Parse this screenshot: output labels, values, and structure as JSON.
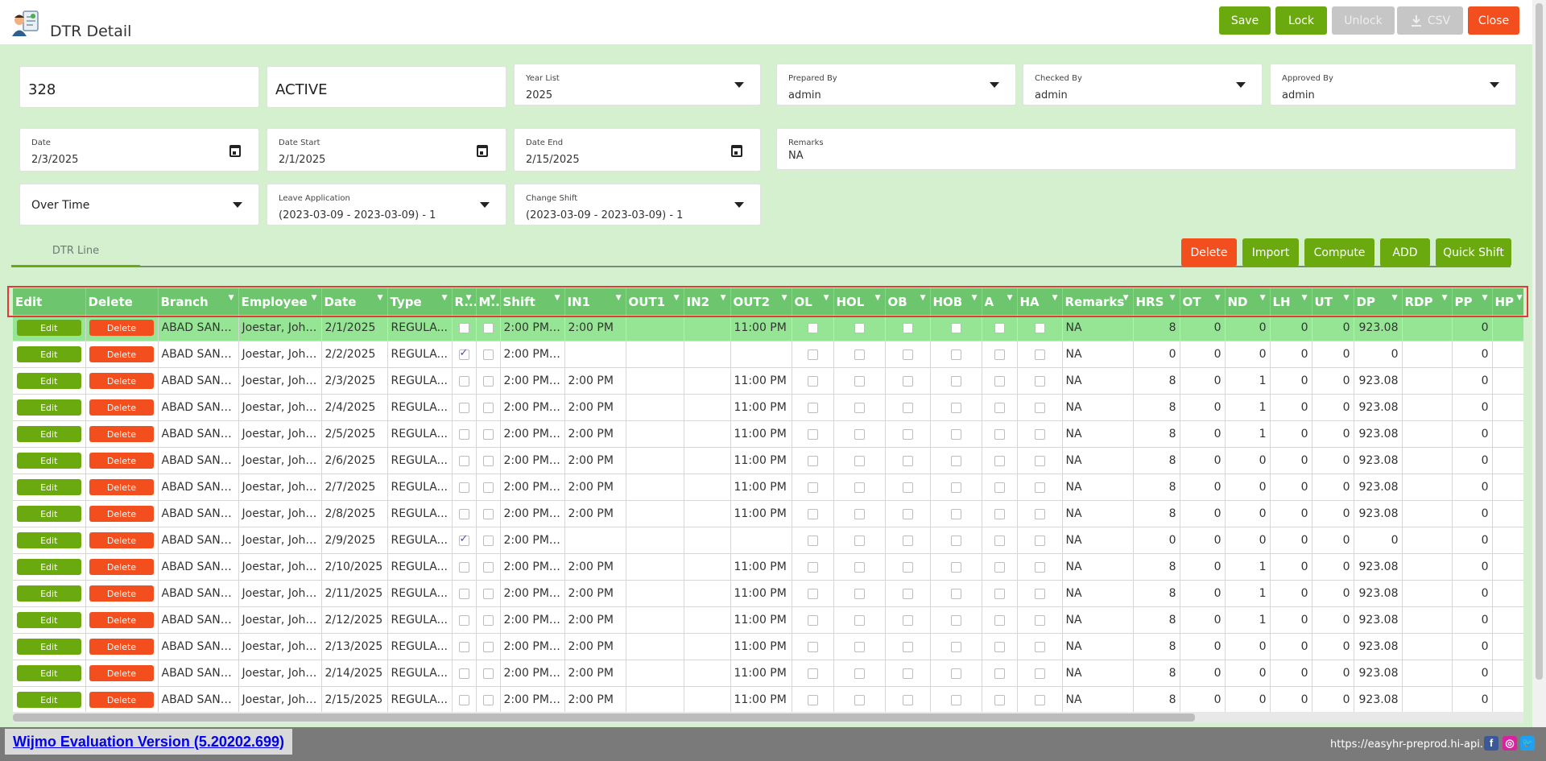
{
  "header": {
    "title": "DTR Detail",
    "buttons": {
      "save": "Save",
      "lock": "Lock",
      "unlock": "Unlock",
      "csv": "CSV",
      "close": "Close"
    }
  },
  "form": {
    "id": "328",
    "status": "ACTIVE",
    "year_list": {
      "label": "Year List",
      "value": "2025"
    },
    "prepared_by": {
      "label": "Prepared By",
      "value": "admin"
    },
    "checked_by": {
      "label": "Checked By",
      "value": "admin"
    },
    "approved_by": {
      "label": "Approved By",
      "value": "admin"
    },
    "date": {
      "label": "Date",
      "value": "2/3/2025"
    },
    "date_start": {
      "label": "Date Start",
      "value": "2/1/2025"
    },
    "date_end": {
      "label": "Date End",
      "value": "2/15/2025"
    },
    "remarks": {
      "label": "Remarks",
      "value": "NA"
    },
    "overtime": {
      "value": "Over Time"
    },
    "leave_application": {
      "label": "Leave Application",
      "value": "(2023-03-09 - 2023-03-09) - 1"
    },
    "change_shift": {
      "label": "Change Shift",
      "value": "(2023-03-09 - 2023-03-09) - 1"
    }
  },
  "tabs": {
    "dtr_line": "DTR Line"
  },
  "actions": {
    "delete": "Delete",
    "import": "Import",
    "compute": "Compute",
    "add": "ADD",
    "quick_shift": "Quick Shift"
  },
  "grid": {
    "columns": [
      "Edit",
      "Delete",
      "Branch",
      "Employee",
      "Date",
      "Type",
      "R...",
      "M...",
      "Shift",
      "IN1",
      "OUT1",
      "IN2",
      "OUT2",
      "OL",
      "HOL",
      "OB",
      "HOB",
      "A",
      "HA",
      "Remarks",
      "HRS",
      "OT",
      "ND",
      "LH",
      "UT",
      "DP",
      "RDP",
      "PP",
      "HP"
    ],
    "button_labels": {
      "edit": "Edit",
      "delete": "Delete"
    },
    "rows": [
      {
        "branch": "ABAD SANT...",
        "employee": "Joestar, John ...",
        "date": "2/1/2025",
        "type": "REGULA...",
        "r": false,
        "m": false,
        "shift": "2:00 PM ...",
        "in1": "2:00 PM",
        "out1": "",
        "in2": "",
        "out2": "11:00 PM",
        "remarks": "NA",
        "hrs": "8",
        "ot": "0",
        "nd": "0",
        "lh": "0",
        "ut": "0",
        "dp": "923.08",
        "rdp": "",
        "pp": "0"
      },
      {
        "branch": "ABAD SANT...",
        "employee": "Joestar, John ...",
        "date": "2/2/2025",
        "type": "REGULA...",
        "r": true,
        "m": false,
        "shift": "2:00 PM ...",
        "in1": "",
        "out1": "",
        "in2": "",
        "out2": "",
        "remarks": "NA",
        "hrs": "0",
        "ot": "0",
        "nd": "0",
        "lh": "0",
        "ut": "0",
        "dp": "0",
        "rdp": "",
        "pp": "0"
      },
      {
        "branch": "ABAD SANT...",
        "employee": "Joestar, John ...",
        "date": "2/3/2025",
        "type": "REGULA...",
        "r": false,
        "m": false,
        "shift": "2:00 PM ...",
        "in1": "2:00 PM",
        "out1": "",
        "in2": "",
        "out2": "11:00 PM",
        "remarks": "NA",
        "hrs": "8",
        "ot": "0",
        "nd": "1",
        "lh": "0",
        "ut": "0",
        "dp": "923.08",
        "rdp": "",
        "pp": "0"
      },
      {
        "branch": "ABAD SANT...",
        "employee": "Joestar, John ...",
        "date": "2/4/2025",
        "type": "REGULA...",
        "r": false,
        "m": false,
        "shift": "2:00 PM ...",
        "in1": "2:00 PM",
        "out1": "",
        "in2": "",
        "out2": "11:00 PM",
        "remarks": "NA",
        "hrs": "8",
        "ot": "0",
        "nd": "1",
        "lh": "0",
        "ut": "0",
        "dp": "923.08",
        "rdp": "",
        "pp": "0"
      },
      {
        "branch": "ABAD SANT...",
        "employee": "Joestar, John ...",
        "date": "2/5/2025",
        "type": "REGULA...",
        "r": false,
        "m": false,
        "shift": "2:00 PM ...",
        "in1": "2:00 PM",
        "out1": "",
        "in2": "",
        "out2": "11:00 PM",
        "remarks": "NA",
        "hrs": "8",
        "ot": "0",
        "nd": "1",
        "lh": "0",
        "ut": "0",
        "dp": "923.08",
        "rdp": "",
        "pp": "0"
      },
      {
        "branch": "ABAD SANT...",
        "employee": "Joestar, John ...",
        "date": "2/6/2025",
        "type": "REGULA...",
        "r": false,
        "m": false,
        "shift": "2:00 PM ...",
        "in1": "2:00 PM",
        "out1": "",
        "in2": "",
        "out2": "11:00 PM",
        "remarks": "NA",
        "hrs": "8",
        "ot": "0",
        "nd": "0",
        "lh": "0",
        "ut": "0",
        "dp": "923.08",
        "rdp": "",
        "pp": "0"
      },
      {
        "branch": "ABAD SANT...",
        "employee": "Joestar, John ...",
        "date": "2/7/2025",
        "type": "REGULA...",
        "r": false,
        "m": false,
        "shift": "2:00 PM ...",
        "in1": "2:00 PM",
        "out1": "",
        "in2": "",
        "out2": "11:00 PM",
        "remarks": "NA",
        "hrs": "8",
        "ot": "0",
        "nd": "0",
        "lh": "0",
        "ut": "0",
        "dp": "923.08",
        "rdp": "",
        "pp": "0"
      },
      {
        "branch": "ABAD SANT...",
        "employee": "Joestar, John ...",
        "date": "2/8/2025",
        "type": "REGULA...",
        "r": false,
        "m": false,
        "shift": "2:00 PM ...",
        "in1": "2:00 PM",
        "out1": "",
        "in2": "",
        "out2": "11:00 PM",
        "remarks": "NA",
        "hrs": "8",
        "ot": "0",
        "nd": "0",
        "lh": "0",
        "ut": "0",
        "dp": "923.08",
        "rdp": "",
        "pp": "0"
      },
      {
        "branch": "ABAD SANT...",
        "employee": "Joestar, John ...",
        "date": "2/9/2025",
        "type": "REGULA...",
        "r": true,
        "m": false,
        "shift": "2:00 PM ...",
        "in1": "",
        "out1": "",
        "in2": "",
        "out2": "",
        "remarks": "NA",
        "hrs": "0",
        "ot": "0",
        "nd": "0",
        "lh": "0",
        "ut": "0",
        "dp": "0",
        "rdp": "",
        "pp": "0"
      },
      {
        "branch": "ABAD SANT...",
        "employee": "Joestar, John ...",
        "date": "2/10/2025",
        "type": "REGULA...",
        "r": false,
        "m": false,
        "shift": "2:00 PM ...",
        "in1": "2:00 PM",
        "out1": "",
        "in2": "",
        "out2": "11:00 PM",
        "remarks": "NA",
        "hrs": "8",
        "ot": "0",
        "nd": "1",
        "lh": "0",
        "ut": "0",
        "dp": "923.08",
        "rdp": "",
        "pp": "0"
      },
      {
        "branch": "ABAD SANT...",
        "employee": "Joestar, John ...",
        "date": "2/11/2025",
        "type": "REGULA...",
        "r": false,
        "m": false,
        "shift": "2:00 PM ...",
        "in1": "2:00 PM",
        "out1": "",
        "in2": "",
        "out2": "11:00 PM",
        "remarks": "NA",
        "hrs": "8",
        "ot": "0",
        "nd": "1",
        "lh": "0",
        "ut": "0",
        "dp": "923.08",
        "rdp": "",
        "pp": "0"
      },
      {
        "branch": "ABAD SANT...",
        "employee": "Joestar, John ...",
        "date": "2/12/2025",
        "type": "REGULA...",
        "r": false,
        "m": false,
        "shift": "2:00 PM ...",
        "in1": "2:00 PM",
        "out1": "",
        "in2": "",
        "out2": "11:00 PM",
        "remarks": "NA",
        "hrs": "8",
        "ot": "0",
        "nd": "1",
        "lh": "0",
        "ut": "0",
        "dp": "923.08",
        "rdp": "",
        "pp": "0"
      },
      {
        "branch": "ABAD SANT...",
        "employee": "Joestar, John ...",
        "date": "2/13/2025",
        "type": "REGULA...",
        "r": false,
        "m": false,
        "shift": "2:00 PM ...",
        "in1": "2:00 PM",
        "out1": "",
        "in2": "",
        "out2": "11:00 PM",
        "remarks": "NA",
        "hrs": "8",
        "ot": "0",
        "nd": "0",
        "lh": "0",
        "ut": "0",
        "dp": "923.08",
        "rdp": "",
        "pp": "0"
      },
      {
        "branch": "ABAD SANT...",
        "employee": "Joestar, John ...",
        "date": "2/14/2025",
        "type": "REGULA...",
        "r": false,
        "m": false,
        "shift": "2:00 PM ...",
        "in1": "2:00 PM",
        "out1": "",
        "in2": "",
        "out2": "11:00 PM",
        "remarks": "NA",
        "hrs": "8",
        "ot": "0",
        "nd": "0",
        "lh": "0",
        "ut": "0",
        "dp": "923.08",
        "rdp": "",
        "pp": "0"
      },
      {
        "branch": "ABAD SANT...",
        "employee": "Joestar, John ...",
        "date": "2/15/2025",
        "type": "REGULA...",
        "r": false,
        "m": false,
        "shift": "2:00 PM ...",
        "in1": "2:00 PM",
        "out1": "",
        "in2": "",
        "out2": "11:00 PM",
        "remarks": "NA",
        "hrs": "8",
        "ot": "0",
        "nd": "0",
        "lh": "0",
        "ut": "0",
        "dp": "923.08",
        "rdp": "",
        "pp": "0"
      }
    ]
  },
  "footer": {
    "wijmo_notice": "Wijmo Evaluation Version (5.20202.699)",
    "url": "https://easyhr-preprod.hi-api.io"
  },
  "colors": {
    "green": "#6aaa0e",
    "red": "#f24e1e",
    "header_green": "#6dc66d",
    "panel_bg": "#d4f0cf",
    "highlight": "#e53935"
  },
  "icons": [
    "app-logo-icon",
    "download-icon",
    "chevron-down-icon",
    "calendar-icon",
    "filter-icon",
    "facebook-icon",
    "instagram-icon",
    "twitter-icon"
  ]
}
